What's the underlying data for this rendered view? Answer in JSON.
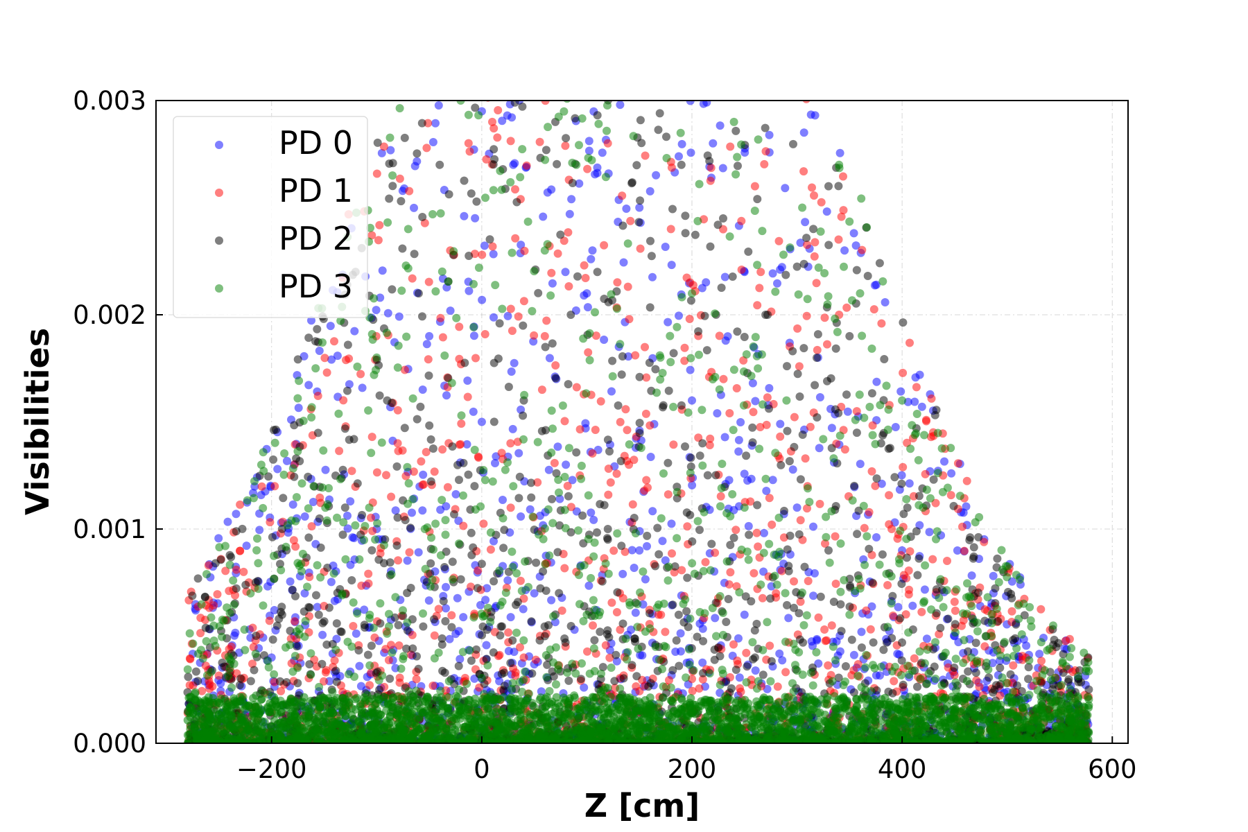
{
  "chart_data": {
    "type": "scatter",
    "xlabel": "Z [cm]",
    "ylabel": "Visibilities",
    "xlim": [
      -310,
      615
    ],
    "ylim": [
      0,
      0.003
    ],
    "x_ticks": [
      -200,
      0,
      200,
      400,
      600
    ],
    "x_tick_labels": [
      "−200",
      "0",
      "200",
      "400",
      "600"
    ],
    "y_ticks": [
      0,
      0.001,
      0.002,
      0.003
    ],
    "y_tick_labels": [
      "0.000",
      "0.001",
      "0.002",
      "0.003"
    ],
    "grid": true,
    "legend_position": "top-left",
    "x_range_of_points": [
      -280,
      578
    ],
    "series": [
      {
        "name": "PD 0",
        "color": "#0000ff",
        "opacity": 0.5
      },
      {
        "name": "PD 1",
        "color": "#ff0000",
        "opacity": 0.5
      },
      {
        "name": "PD 2",
        "color": "#000000",
        "opacity": 0.5
      },
      {
        "name": "PD 3",
        "color": "#008000",
        "opacity": 0.5
      }
    ],
    "sample_points": {
      "PD 0": [
        [
          0,
          0.00295
        ],
        [
          30,
          0.0027
        ],
        [
          150,
          0.0025
        ],
        [
          220,
          0.0028
        ],
        [
          -50,
          0.0019
        ],
        [
          100,
          0.0021
        ],
        [
          250,
          0.0022
        ],
        [
          320,
          0.0018
        ],
        [
          0,
          0.0015
        ],
        [
          80,
          0.0013
        ],
        [
          200,
          0.0016
        ],
        [
          300,
          0.0011
        ],
        [
          -100,
          0.001
        ],
        [
          150,
          0.0009
        ],
        [
          400,
          0.0009
        ],
        [
          50,
          0.0007
        ],
        [
          250,
          0.0006
        ],
        [
          450,
          0.0005
        ],
        [
          -200,
          0.0004
        ],
        [
          0,
          0.0003
        ],
        [
          300,
          0.0002
        ],
        [
          500,
          0.0002
        ]
      ],
      "PD 1": [
        [
          10,
          0.0029
        ],
        [
          120,
          0.0028
        ],
        [
          260,
          0.0026
        ],
        [
          -30,
          0.0023
        ],
        [
          180,
          0.0024
        ],
        [
          340,
          0.002
        ],
        [
          60,
          0.0019
        ],
        [
          230,
          0.0017
        ],
        [
          -80,
          0.0014
        ],
        [
          140,
          0.0013
        ],
        [
          310,
          0.0012
        ],
        [
          390,
          0.001
        ],
        [
          -150,
          0.0008
        ],
        [
          90,
          0.0008
        ],
        [
          280,
          0.0007
        ],
        [
          460,
          0.0006
        ],
        [
          -240,
          0.0003
        ],
        [
          40,
          0.0004
        ],
        [
          200,
          0.0003
        ],
        [
          540,
          0.0002
        ]
      ],
      "PD 2": [
        [
          -40,
          0.0027
        ],
        [
          70,
          0.0029
        ],
        [
          190,
          0.0027
        ],
        [
          330,
          0.0026
        ],
        [
          -60,
          0.0021
        ],
        [
          110,
          0.0022
        ],
        [
          270,
          0.002
        ],
        [
          350,
          0.0019
        ],
        [
          -90,
          0.0016
        ],
        [
          40,
          0.0016
        ],
        [
          210,
          0.0014
        ],
        [
          380,
          0.0014
        ],
        [
          -130,
          0.0011
        ],
        [
          120,
          0.001
        ],
        [
          330,
          0.0009
        ],
        [
          480,
          0.0005
        ],
        [
          -190,
          0.0006
        ],
        [
          60,
          0.0005
        ],
        [
          260,
          0.0004
        ],
        [
          520,
          0.0003
        ]
      ],
      "PD 3": [
        [
          -20,
          0.003
        ],
        [
          90,
          0.0027
        ],
        [
          240,
          0.0029
        ],
        [
          340,
          0.0027
        ],
        [
          -70,
          0.0024
        ],
        [
          60,
          0.0023
        ],
        [
          200,
          0.0021
        ],
        [
          360,
          0.0021
        ],
        [
          -100,
          0.0018
        ],
        [
          170,
          0.0018
        ],
        [
          290,
          0.0016
        ],
        [
          400,
          0.0016
        ],
        [
          -160,
          0.0012
        ],
        [
          30,
          0.0012
        ],
        [
          250,
          0.0011
        ],
        [
          420,
          0.0011
        ],
        [
          -220,
          0.0007
        ],
        [
          100,
          0.0006
        ],
        [
          350,
          0.0006
        ],
        [
          500,
          0.0004
        ]
      ]
    }
  }
}
